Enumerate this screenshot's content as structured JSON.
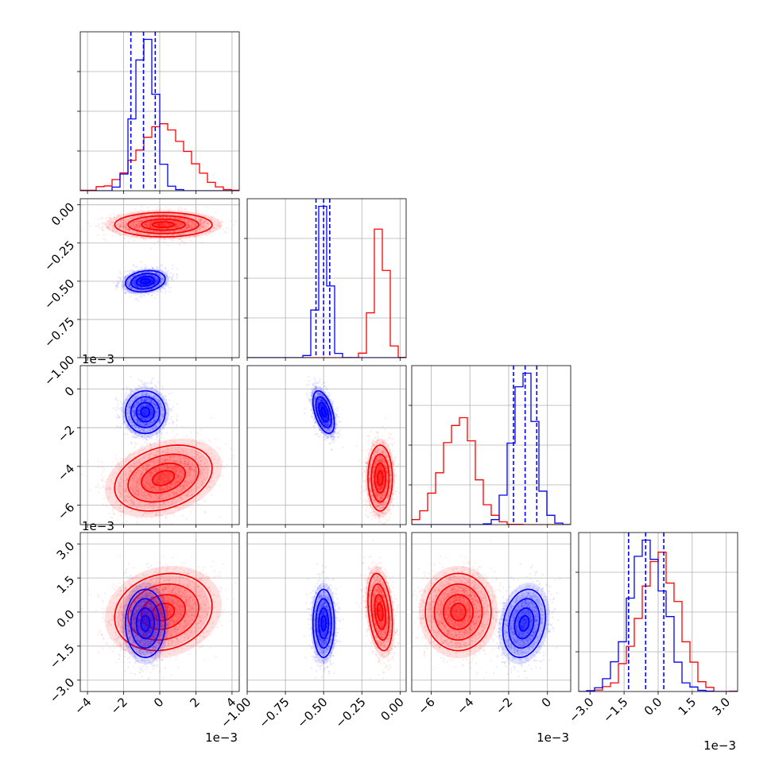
{
  "chart_data": {
    "type": "corner",
    "offset_text": "1e−3",
    "colors": {
      "a": "#ff0000",
      "b": "#0000ff",
      "grid": "#b0b0b0"
    },
    "parameters": [
      {
        "range": [
          -4.4,
          4.4
        ],
        "ticks": [
          -4,
          -2,
          0,
          2,
          4
        ],
        "tick_labels": [
          "−4",
          "−2",
          "0",
          "2",
          "4"
        ]
      },
      {
        "range": [
          -1.0,
          0.04
        ],
        "ticks": [
          -1.0,
          -0.75,
          -0.5,
          -0.25,
          0.0
        ],
        "tick_labels": [
          "−1.00",
          "−0.75",
          "−0.50",
          "−0.25",
          "0.00"
        ]
      },
      {
        "range": [
          -7.0,
          1.2
        ],
        "ticks": [
          -6,
          -4,
          -2,
          0
        ],
        "tick_labels": [
          "−6",
          "−4",
          "−2",
          "0"
        ]
      },
      {
        "range": [
          -3.5,
          3.5
        ],
        "ticks": [
          -3.0,
          -1.5,
          0.0,
          1.5,
          3.0
        ],
        "tick_labels": [
          "−3.0",
          "−1.5",
          "0.0",
          "1.5",
          "3.0"
        ]
      }
    ],
    "series": [
      {
        "color": "#ff0000",
        "mean": [
          0.2,
          -0.13,
          -4.6,
          0.0
        ],
        "std": [
          1.35,
          0.04,
          0.85,
          0.85
        ],
        "corr": [
          [
            1,
            0,
            0.3,
            0.15
          ],
          [
            0,
            1,
            0,
            -0.3
          ],
          [
            0.3,
            0,
            1,
            0
          ],
          [
            0.15,
            -0.3,
            0,
            1
          ]
        ]
      },
      {
        "color": "#0000ff",
        "mean": [
          -0.8,
          -0.5,
          -1.2,
          -0.5
        ],
        "std": [
          0.55,
          0.035,
          0.55,
          0.75
        ],
        "corr": [
          [
            1,
            0.2,
            0,
            0
          ],
          [
            0.2,
            1,
            -0.5,
            0
          ],
          [
            0,
            -0.5,
            1,
            0.2
          ],
          [
            0,
            0,
            0.2,
            1
          ]
        ],
        "quantiles": [
          [
            -1.6,
            -0.9,
            -0.25
          ],
          [
            -0.55,
            -0.5,
            -0.46
          ],
          [
            -1.75,
            -1.15,
            -0.55
          ],
          [
            -1.3,
            -0.55,
            0.25
          ]
        ]
      }
    ]
  }
}
